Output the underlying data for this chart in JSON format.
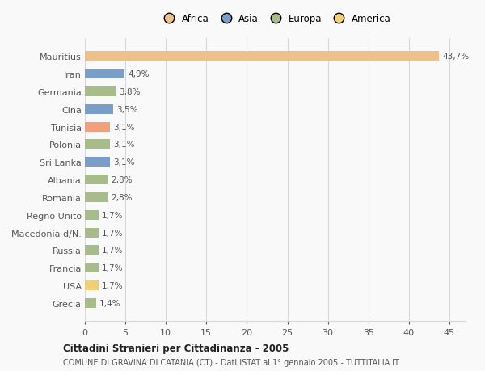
{
  "categories": [
    "Mauritius",
    "Iran",
    "Germania",
    "Cina",
    "Tunisia",
    "Polonia",
    "Sri Lanka",
    "Albania",
    "Romania",
    "Regno Unito",
    "Macedonia d/N.",
    "Russia",
    "Francia",
    "USA",
    "Grecia"
  ],
  "values": [
    43.7,
    4.9,
    3.8,
    3.5,
    3.1,
    3.1,
    3.1,
    2.8,
    2.8,
    1.7,
    1.7,
    1.7,
    1.7,
    1.7,
    1.4
  ],
  "labels": [
    "43,7%",
    "4,9%",
    "3,8%",
    "3,5%",
    "3,1%",
    "3,1%",
    "3,1%",
    "2,8%",
    "2,8%",
    "1,7%",
    "1,7%",
    "1,7%",
    "1,7%",
    "1,7%",
    "1,4%"
  ],
  "colors": [
    "#f0c08a",
    "#7b9ec9",
    "#a8bb8a",
    "#7b9ec9",
    "#f0a07a",
    "#a8bb8a",
    "#7b9ec9",
    "#a8bb8a",
    "#a8bb8a",
    "#a8bb8a",
    "#a8bb8a",
    "#a8bb8a",
    "#a8bb8a",
    "#f0d070",
    "#a8bb8a"
  ],
  "legend_labels": [
    "Africa",
    "Asia",
    "Europa",
    "America"
  ],
  "legend_colors": [
    "#f0c08a",
    "#7b9ec9",
    "#a8bb8a",
    "#f0d070"
  ],
  "xlim": [
    0,
    47
  ],
  "xticks": [
    0,
    5,
    10,
    15,
    20,
    25,
    30,
    35,
    40,
    45
  ],
  "title1": "Cittadini Stranieri per Cittadinanza - 2005",
  "title2": "COMUNE DI GRAVINA DI CATANIA (CT) - Dati ISTAT al 1° gennaio 2005 - TUTTITALIA.IT",
  "bg_color": "#f9f9f9",
  "grid_color": "#d8d8d8"
}
